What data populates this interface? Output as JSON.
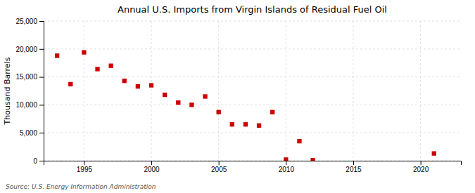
{
  "chart_data": {
    "type": "scatter",
    "title": "Annual U.S. Imports from Virgin Islands of Residual Fuel Oil",
    "ylabel": "Thousand Barrels",
    "annotations": [
      "Source: U.S. Energy Information Administration"
    ],
    "x": [
      1993,
      1994,
      1995,
      1996,
      1997,
      1998,
      1999,
      2000,
      2001,
      2002,
      2003,
      2004,
      2005,
      2006,
      2007,
      2008,
      2009,
      2010,
      2011,
      2012,
      2021
    ],
    "values": [
      18800,
      13700,
      19400,
      16400,
      17000,
      14300,
      13300,
      13500,
      11800,
      10400,
      10000,
      11500,
      8700,
      6500,
      6500,
      6300,
      8700,
      200,
      3500,
      100,
      1300
    ],
    "color": "#cc0000",
    "marker": "square",
    "xlim": [
      1992,
      2023
    ],
    "ylim": [
      0,
      25000
    ],
    "xticks": [
      1995,
      2000,
      2005,
      2010,
      2015,
      2020
    ],
    "yticks": [
      0,
      {
        "value": 5000,
        "label": "5,000"
      },
      {
        "value": 10000,
        "label": "10,000"
      },
      {
        "value": 15000,
        "label": "15,000"
      },
      {
        "value": 20000,
        "label": "20,000"
      },
      {
        "value": 25000,
        "label": "25,000"
      }
    ],
    "grid": true
  }
}
